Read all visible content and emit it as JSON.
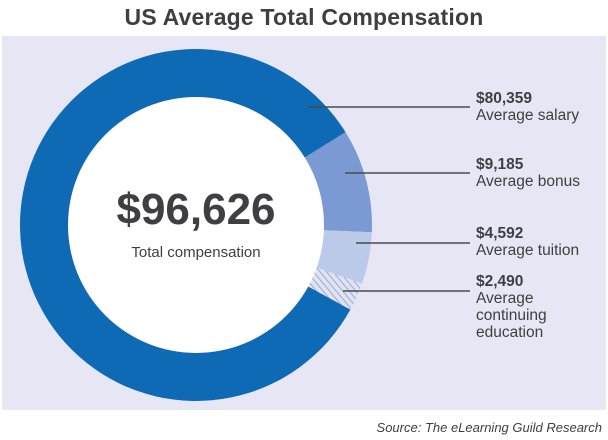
{
  "title": "US Average Total Compensation",
  "center": {
    "value": "$96,626",
    "label": "Total compensation"
  },
  "source": "Source: The eLearning Guild Research",
  "colors": {
    "salary": "#0e6ab5",
    "bonus": "#7b99d2",
    "tuition": "#bccaea",
    "continuing": "#d9dff0",
    "panel": "#e6e6f4",
    "leader": "#4a4a4d"
  },
  "chart_data": {
    "type": "pie",
    "title": "US Average Total Compensation",
    "total": 96626,
    "slices": [
      {
        "name": "Average salary",
        "label": "$80,359",
        "value": 80359,
        "pattern": "solid"
      },
      {
        "name": "Average bonus",
        "label": "$9,185",
        "value": 9185,
        "pattern": "solid"
      },
      {
        "name": "Average tuition",
        "label": "$4,592",
        "value": 4592,
        "pattern": "solid"
      },
      {
        "name": "Average\ncontinuing\neducation",
        "label": "$2,490",
        "value": 2490,
        "pattern": "hatched"
      }
    ]
  }
}
